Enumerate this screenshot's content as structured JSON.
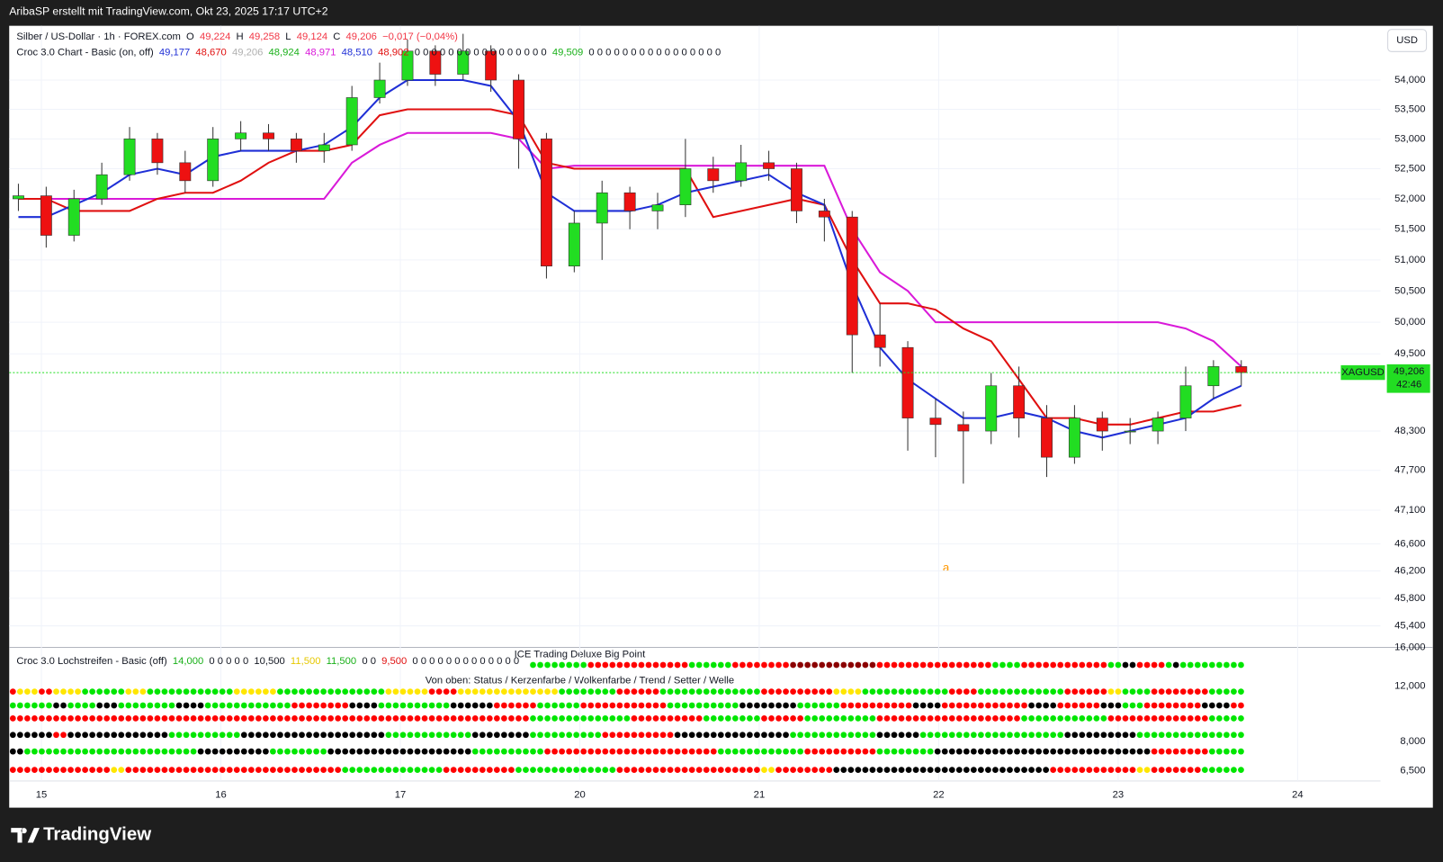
{
  "topbar": "AribaSP erstellt mit TradingView.com, Okt 23, 2025 17:17 UTC+2",
  "logo": "TradingView",
  "currency": "USD",
  "legend": [
    [
      {
        "text": "Silber / US-Dollar · 1h · FOREX.com",
        "color": "#131722"
      },
      {
        "text": "O",
        "color": "#131722"
      },
      {
        "text": "49,224",
        "color": "#f23645"
      },
      {
        "text": "H",
        "color": "#131722"
      },
      {
        "text": "49,258",
        "color": "#f23645"
      },
      {
        "text": "L",
        "color": "#131722"
      },
      {
        "text": "49,124",
        "color": "#f23645"
      },
      {
        "text": "C",
        "color": "#131722"
      },
      {
        "text": "49,206",
        "color": "#f23645"
      },
      {
        "text": "−0,017 (−0,04%)",
        "color": "#f23645"
      }
    ],
    [
      {
        "text": "Croc 3.0 Chart - Basic (on, off)",
        "color": "#131722"
      },
      {
        "text": "49,177",
        "color": "#1f2fd6"
      },
      {
        "text": "48,670",
        "color": "#e01010"
      },
      {
        "text": "49,206",
        "color": "#b0b0b0"
      },
      {
        "text": "48,924",
        "color": "#19b019"
      },
      {
        "text": "48,971",
        "color": "#d91ad9"
      },
      {
        "text": "48,510",
        "color": "#1f2fd6"
      },
      {
        "text": "48,902",
        "color": "#e01010"
      },
      {
        "text": "0  0  0  0  0  0  0  0  0  0  0  0  0  0  0  0",
        "color": "#131722"
      },
      {
        "text": "49,509",
        "color": "#19b019"
      },
      {
        "text": "0  0  0  0  0  0  0  0  0  0  0  0  0  0  0  0",
        "color": "#131722"
      }
    ]
  ],
  "lower_legend": [
    {
      "text": "Croc 3.0 Lochstreifen - Basic (off)",
      "color": "#131722"
    },
    {
      "text": "14,000",
      "color": "#19b019"
    },
    {
      "text": "0  0  0  0  0",
      "color": "#131722"
    },
    {
      "text": "10,500",
      "color": "#131722"
    },
    {
      "text": "11,500",
      "color": "#e6c800"
    },
    {
      "text": "11,500",
      "color": "#19b019"
    },
    {
      "text": "0  0",
      "color": "#131722"
    },
    {
      "text": "9,500",
      "color": "#e01010"
    },
    {
      "text": "0  0  0  0  0  0  0  0  0  0  0  0  0",
      "color": "#131722"
    }
  ],
  "lower_title": "ICE Trading Deluxe Big Point",
  "lower_subtitle": "Von oben: Status / Kerzenfarbe / Wolkenfarbe / Trend / Setter / Welle",
  "lower_axis_labels": [
    "16,000",
    "12,000",
    "8,000",
    "6,500"
  ],
  "dot_colors": {
    "G": "#00e600",
    "R": "#ff0000",
    "K": "#000000",
    "Y": "#ffe600",
    "D": "#8b0000"
  },
  "dot_rows": [
    "_72 G8 R14 G6 R8 D12 R16 G4 R12 G2 K2 R4 G1 K1 G9",
    "R1 Y3 R2 Y4 G6 Y3 G12 Y6 G15 Y6 R4 Y14 G8 R6 G14 R10 Y4 G12 R4 G12 R6 Y2 G4 R8 G5",
    "G6 K2 G4 K3 G8 K4 G12 R8 K4 G10 K6 R6 G6 R12 G10 K8 G6 R10 K4 R12 K4 R6 K3 G3 R8 K4 R2",
    "R72 G14 R10 G8 R6 G10 R20 G12 R14 G5",
    "K6 R2 K14 G10 K20 G12 K8 G10 R10 K16 G12 K6 G20 K10 G15",
    "K2 G24 K10 G8 K20 G10 R24 G12 R10 G8 K30 R8 G5",
    "R14 Y2 R30 G14 R10 G14 R20 Y2 R8 K30 R12 Y2 R7 G6"
  ],
  "day_labels": [
    "15",
    "16",
    "17",
    "20",
    "21",
    "22",
    "23",
    "24"
  ],
  "symbol_label": "XAGUSD",
  "price_label": "49,206",
  "countdown": "42:46",
  "annotation": "a",
  "chart_data": {
    "type": "candlestick",
    "log_scale": true,
    "ylim": [
      45090,
      54940
    ],
    "yticks": [
      {
        "value": 54000,
        "label": "54,000"
      },
      {
        "value": 53500,
        "label": "53,500"
      },
      {
        "value": 53000,
        "label": "53,000"
      },
      {
        "value": 52500,
        "label": "52,500"
      },
      {
        "value": 52000,
        "label": "52,000"
      },
      {
        "value": 51500,
        "label": "51,500"
      },
      {
        "value": 51000,
        "label": "51,000"
      },
      {
        "value": 50500,
        "label": "50,500"
      },
      {
        "value": 50000,
        "label": "50,000"
      },
      {
        "value": 49500,
        "label": "49,500"
      },
      {
        "value": 48300,
        "label": "48,300"
      },
      {
        "value": 47700,
        "label": "47,700"
      },
      {
        "value": 47100,
        "label": "47,100"
      },
      {
        "value": 46600,
        "label": "46,600"
      },
      {
        "value": 46200,
        "label": "46,200"
      },
      {
        "value": 45800,
        "label": "45,800"
      },
      {
        "value": 45400,
        "label": "45,400"
      }
    ],
    "grid": true,
    "last_price": 49206,
    "up_color": "#22dd22",
    "down_color": "#ee1111",
    "open": [
      52000,
      52050,
      51400,
      52000,
      52400,
      53000,
      52600,
      52300,
      53000,
      53100,
      53000,
      52800,
      52900,
      53700,
      54000,
      54500,
      54100,
      54500,
      54000,
      53000,
      50900,
      51600,
      52100,
      51800,
      51900,
      52500,
      52300,
      52600,
      52500,
      51800,
      51700,
      49800,
      49600,
      48500,
      48400,
      48300,
      49000,
      48500,
      47900,
      48500,
      48300,
      48300,
      48500,
      49000,
      49300
    ],
    "high": [
      52250,
      52200,
      52150,
      52600,
      53200,
      53100,
      52800,
      53200,
      53300,
      53250,
      53100,
      53100,
      53900,
      54300,
      54700,
      54600,
      54800,
      54600,
      54100,
      53100,
      51800,
      52300,
      52200,
      52100,
      53000,
      52700,
      52900,
      52800,
      52600,
      52000,
      51800,
      50300,
      49700,
      48800,
      48600,
      49200,
      49300,
      48700,
      48700,
      48600,
      48500,
      48600,
      49300,
      49400,
      49400
    ],
    "low": [
      51800,
      51200,
      51300,
      51900,
      52300,
      52400,
      52100,
      52200,
      52800,
      52800,
      52600,
      52600,
      52800,
      53600,
      53900,
      53900,
      54000,
      53800,
      52500,
      50700,
      50800,
      51000,
      51500,
      51500,
      51700,
      52100,
      52200,
      52300,
      51600,
      51300,
      49200,
      49300,
      48000,
      47900,
      47500,
      48100,
      48200,
      47600,
      47800,
      48000,
      48100,
      48100,
      48300,
      48800,
      49000
    ],
    "close": [
      52050,
      51400,
      52000,
      52400,
      53000,
      52600,
      52300,
      53000,
      53100,
      53000,
      52800,
      52900,
      53700,
      54000,
      54500,
      54100,
      54500,
      54000,
      53000,
      50900,
      51600,
      52100,
      51800,
      51900,
      52500,
      52300,
      52600,
      52500,
      51800,
      51700,
      49800,
      49600,
      48500,
      48400,
      48300,
      49000,
      48500,
      47900,
      48500,
      48300,
      48300,
      48500,
      49000,
      49300,
      49206
    ],
    "series": [
      {
        "color": "#d91ad9",
        "values": [
          52000,
          52000,
          52000,
          52000,
          52000,
          52000,
          52000,
          52000,
          52000,
          52000,
          52000,
          52000,
          52600,
          52900,
          53100,
          53100,
          53100,
          53100,
          53000,
          52500,
          52550,
          52550,
          52550,
          52550,
          52550,
          52550,
          52550,
          52550,
          52550,
          52550,
          51500,
          50800,
          50500,
          50000,
          50000,
          50000,
          50000,
          50000,
          50000,
          50000,
          50000,
          50000,
          49900,
          49700,
          49300
        ]
      },
      {
        "color": "#e01010",
        "values": [
          52000,
          52000,
          51800,
          51800,
          51800,
          52000,
          52100,
          52100,
          52300,
          52600,
          52800,
          52800,
          52900,
          53400,
          53500,
          53500,
          53500,
          53500,
          53400,
          52600,
          52500,
          52500,
          52500,
          52500,
          52500,
          51700,
          51800,
          51900,
          52000,
          51900,
          51000,
          50300,
          50300,
          50200,
          49900,
          49700,
          49100,
          48500,
          48500,
          48400,
          48400,
          48500,
          48600,
          48600,
          48700
        ]
      },
      {
        "color": "#1f2fd6",
        "values": [
          51700,
          51700,
          51900,
          52100,
          52400,
          52500,
          52400,
          52700,
          52800,
          52800,
          52800,
          52900,
          53200,
          53700,
          54000,
          54000,
          54000,
          53900,
          53300,
          52100,
          51800,
          51800,
          51800,
          51900,
          52100,
          52200,
          52300,
          52400,
          52100,
          51900,
          50600,
          49600,
          49100,
          48800,
          48500,
          48500,
          48600,
          48500,
          48300,
          48200,
          48300,
          48400,
          48500,
          48800,
          49000
        ]
      }
    ]
  }
}
